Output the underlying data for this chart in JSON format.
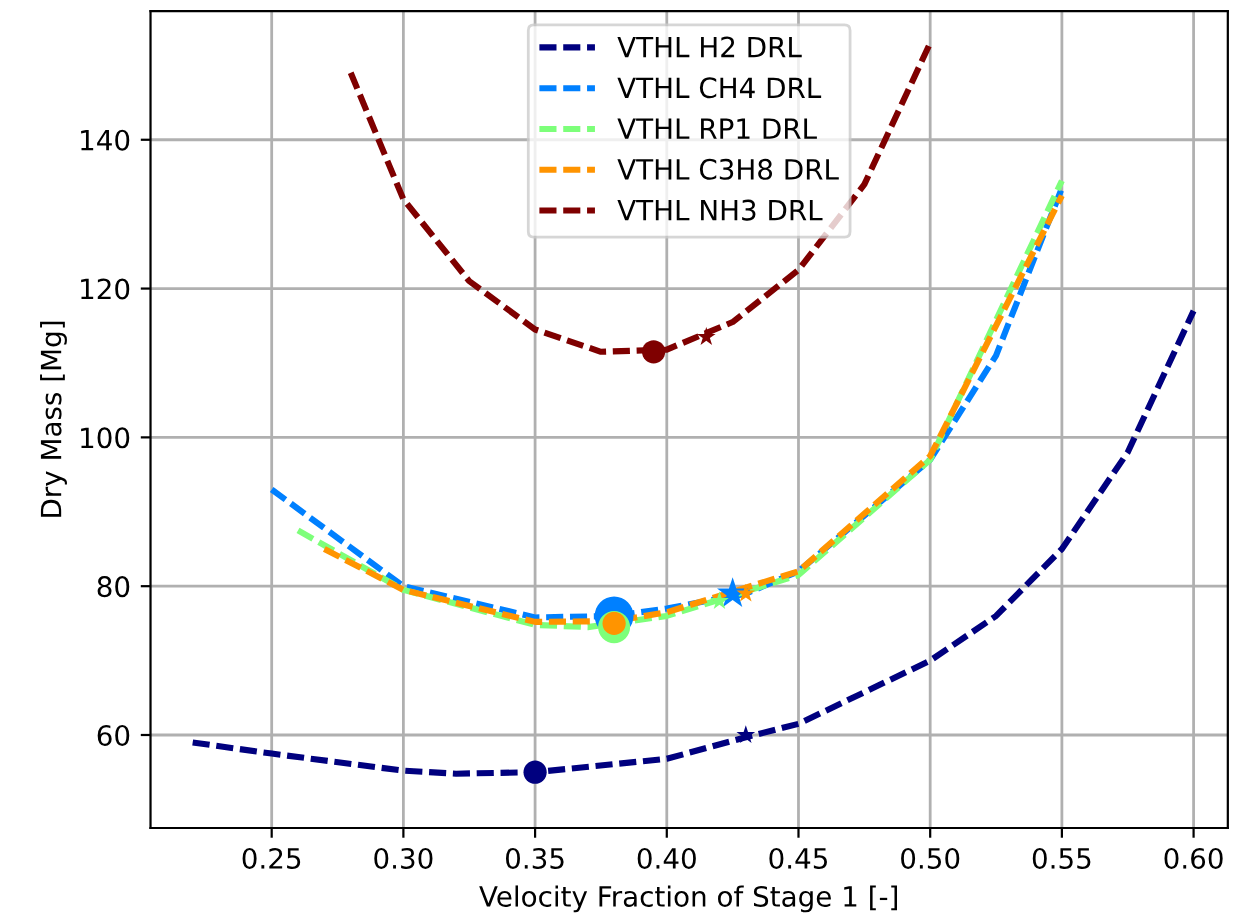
{
  "chart_data": {
    "type": "line",
    "xlabel": "Velocity Fraction of Stage 1 [-]",
    "ylabel": "Dry Mass [Mg]",
    "xlim": [
      0.204,
      0.613
    ],
    "ylim": [
      47.5,
      157.3
    ],
    "xticks": [
      {
        "value": 0.25,
        "label": "0.25"
      },
      {
        "value": 0.3,
        "label": "0.30"
      },
      {
        "value": 0.35,
        "label": "0.35"
      },
      {
        "value": 0.4,
        "label": "0.40"
      },
      {
        "value": 0.45,
        "label": "0.45"
      },
      {
        "value": 0.5,
        "label": "0.50"
      },
      {
        "value": 0.55,
        "label": "0.55"
      },
      {
        "value": 0.6,
        "label": "0.60"
      }
    ],
    "yticks": [
      60,
      80,
      100,
      120,
      140
    ],
    "grid": true,
    "legend": "top center",
    "series": [
      {
        "name": "VTHL H2 DRL",
        "color": "#00007f",
        "line_style": "dashed",
        "x": [
          0.22,
          0.25,
          0.3,
          0.32,
          0.35,
          0.4,
          0.43,
          0.45,
          0.5,
          0.525,
          0.55,
          0.575,
          0.6
        ],
        "values": [
          59,
          57.5,
          55.2,
          54.8,
          55,
          56.8,
          59.7,
          61.5,
          70,
          76,
          85,
          98,
          117
        ]
      },
      {
        "name": "VTHL CH4 DRL",
        "color": "#0080ff",
        "line_style": "dashed",
        "x": [
          0.25,
          0.3,
          0.35,
          0.38,
          0.4,
          0.43,
          0.45,
          0.5,
          0.525,
          0.55
        ],
        "values": [
          93,
          80,
          75.8,
          76,
          77,
          79,
          82,
          97,
          111,
          133.5
        ]
      },
      {
        "name": "VTHL RP1 DRL",
        "color": "#7dff7a",
        "line_style": "dashed",
        "x": [
          0.26,
          0.3,
          0.35,
          0.37,
          0.4,
          0.45,
          0.5,
          0.55
        ],
        "values": [
          87.5,
          79.5,
          74.8,
          74.5,
          76,
          81.5,
          97,
          134.5
        ]
      },
      {
        "name": "VTHL C3H8 DRL",
        "color": "#ff9400",
        "line_style": "dashed",
        "x": [
          0.27,
          0.3,
          0.35,
          0.38,
          0.4,
          0.45,
          0.5,
          0.55
        ],
        "values": [
          85,
          79.5,
          75.2,
          75.3,
          76.5,
          82,
          97.5,
          132.5
        ]
      },
      {
        "name": "VTHL NH3 DRL",
        "color": "#7f0000",
        "line_style": "dashed",
        "x": [
          0.28,
          0.3,
          0.325,
          0.35,
          0.375,
          0.4,
          0.425,
          0.45,
          0.475,
          0.5
        ],
        "values": [
          149,
          132,
          121,
          114.5,
          111.5,
          111.8,
          115.5,
          122.5,
          134,
          153
        ]
      },
      {
        "type": "scatter",
        "marker": "circle",
        "color": "#00007f",
        "x": [
          0.35
        ],
        "values": [
          55
        ]
      },
      {
        "type": "scatter",
        "marker": "star",
        "color": "#00007f",
        "x": [
          0.43
        ],
        "values": [
          60
        ]
      },
      {
        "type": "scatter",
        "marker": "circle",
        "color": "#0080ff",
        "x": [
          0.38
        ],
        "values": [
          76
        ]
      },
      {
        "type": "scatter",
        "marker": "star",
        "color": "#0080ff",
        "x": [
          0.425
        ],
        "values": [
          79
        ]
      },
      {
        "type": "scatter",
        "marker": "circle",
        "color": "#7dff7a",
        "x": [
          0.38
        ],
        "values": [
          74.5
        ]
      },
      {
        "type": "scatter",
        "marker": "star",
        "color": "#7dff7a",
        "x": [
          0.42
        ],
        "values": [
          78
        ]
      },
      {
        "type": "scatter",
        "marker": "circle",
        "color": "#ff9400",
        "x": [
          0.38
        ],
        "values": [
          75
        ]
      },
      {
        "type": "scatter",
        "marker": "star",
        "color": "#ff9400",
        "x": [
          0.43
        ],
        "values": [
          79
        ]
      },
      {
        "type": "scatter",
        "marker": "circle",
        "color": "#7f0000",
        "x": [
          0.395
        ],
        "values": [
          111.5
        ]
      },
      {
        "type": "scatter",
        "marker": "star",
        "color": "#7f0000",
        "x": [
          0.415
        ],
        "values": [
          113.5
        ]
      }
    ]
  }
}
